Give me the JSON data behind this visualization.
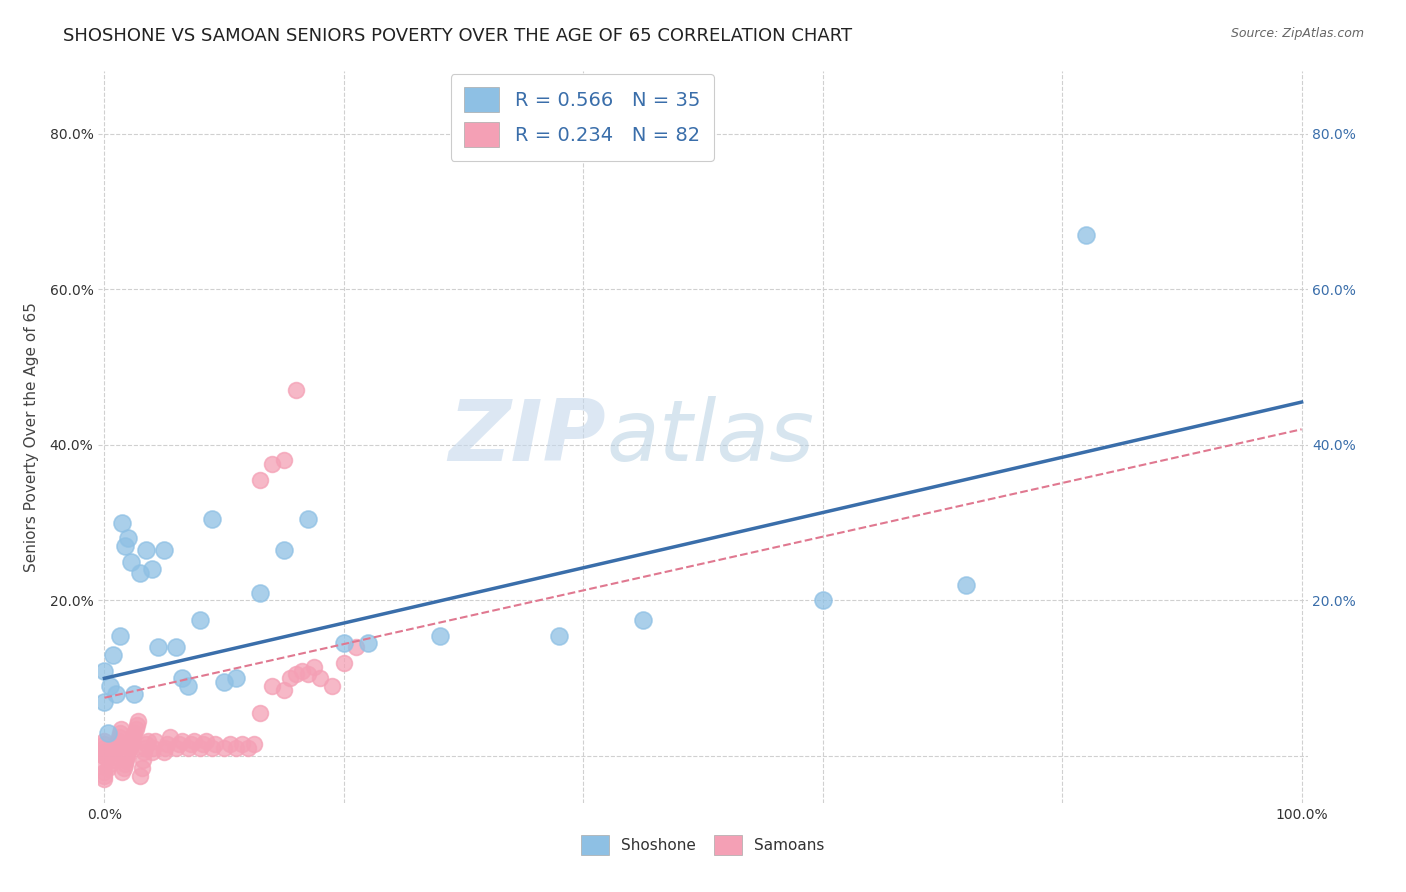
{
  "title": "SHOSHONE VS SAMOAN SENIORS POVERTY OVER THE AGE OF 65 CORRELATION CHART",
  "source": "Source: ZipAtlas.com",
  "ylabel": "Seniors Poverty Over the Age of 65",
  "xlim": [
    -0.005,
    1.005
  ],
  "ylim": [
    -0.06,
    0.88
  ],
  "xticks": [
    0.0,
    0.2,
    0.4,
    0.6,
    0.8,
    1.0
  ],
  "xticklabels": [
    "0.0%",
    "",
    "",
    "",
    "",
    "100.0%"
  ],
  "yticks": [
    0.0,
    0.2,
    0.4,
    0.6,
    0.8
  ],
  "yticklabels": [
    "",
    "20.0%",
    "40.0%",
    "60.0%",
    "80.0%"
  ],
  "right_yticklabels": [
    "20.0%",
    "40.0%",
    "60.0%",
    "80.0%"
  ],
  "shoshone_color": "#8ec0e4",
  "samoan_color": "#f4a0b5",
  "shoshone_line_color": "#3a6eaa",
  "samoan_line_color": "#e07890",
  "background_color": "#ffffff",
  "grid_color": "#d0d0d0",
  "watermark_zip": "ZIP",
  "watermark_atlas": "atlas",
  "legend_text1": "R = 0.566   N = 35",
  "legend_text2": "R = 0.234   N = 82",
  "legend_label1": "Shoshone",
  "legend_label2": "Samoans",
  "blue_line_x0": 0.0,
  "blue_line_y0": 0.1,
  "blue_line_x1": 1.0,
  "blue_line_y1": 0.455,
  "pink_line_x0": 0.0,
  "pink_line_y0": 0.075,
  "pink_line_x1": 1.0,
  "pink_line_y1": 0.42,
  "shoshone_pts_x": [
    0.0,
    0.0,
    0.003,
    0.005,
    0.007,
    0.01,
    0.013,
    0.015,
    0.017,
    0.02,
    0.022,
    0.025,
    0.03,
    0.035,
    0.04,
    0.045,
    0.05,
    0.06,
    0.065,
    0.07,
    0.08,
    0.09,
    0.1,
    0.11,
    0.13,
    0.15,
    0.17,
    0.2,
    0.22,
    0.28,
    0.38,
    0.45,
    0.6,
    0.72,
    0.82
  ],
  "shoshone_pts_y": [
    0.07,
    0.11,
    0.03,
    0.09,
    0.13,
    0.08,
    0.155,
    0.3,
    0.27,
    0.28,
    0.25,
    0.08,
    0.235,
    0.265,
    0.24,
    0.14,
    0.265,
    0.14,
    0.1,
    0.09,
    0.175,
    0.305,
    0.095,
    0.1,
    0.21,
    0.265,
    0.305,
    0.145,
    0.145,
    0.155,
    0.155,
    0.175,
    0.2,
    0.22,
    0.67
  ],
  "samoan_pts_x": [
    0.0,
    0.0,
    0.0,
    0.0,
    0.0,
    0.0,
    0.0,
    0.0,
    0.0,
    0.0,
    0.003,
    0.005,
    0.006,
    0.007,
    0.008,
    0.009,
    0.01,
    0.011,
    0.012,
    0.013,
    0.014,
    0.015,
    0.016,
    0.017,
    0.018,
    0.019,
    0.02,
    0.021,
    0.022,
    0.023,
    0.024,
    0.025,
    0.026,
    0.027,
    0.028,
    0.03,
    0.031,
    0.032,
    0.033,
    0.034,
    0.035,
    0.036,
    0.04,
    0.041,
    0.042,
    0.05,
    0.051,
    0.052,
    0.055,
    0.06,
    0.062,
    0.065,
    0.07,
    0.072,
    0.075,
    0.08,
    0.082,
    0.085,
    0.09,
    0.092,
    0.1,
    0.105,
    0.11,
    0.115,
    0.12,
    0.125,
    0.13,
    0.14,
    0.15,
    0.155,
    0.16,
    0.165,
    0.17,
    0.175,
    0.18,
    0.19,
    0.2,
    0.21,
    0.13,
    0.14,
    0.15,
    0.16
  ],
  "samoan_pts_y": [
    0.0,
    0.0,
    -0.01,
    -0.02,
    -0.025,
    -0.03,
    0.005,
    0.01,
    0.015,
    0.02,
    -0.015,
    -0.01,
    -0.005,
    0.0,
    0.005,
    0.01,
    0.015,
    0.02,
    0.025,
    0.03,
    0.035,
    -0.02,
    -0.015,
    -0.01,
    -0.005,
    0.0,
    0.005,
    0.01,
    0.015,
    0.02,
    0.025,
    0.03,
    0.035,
    0.04,
    0.045,
    -0.025,
    -0.015,
    -0.005,
    0.005,
    0.01,
    0.015,
    0.02,
    0.005,
    0.01,
    0.02,
    0.005,
    0.01,
    0.015,
    0.025,
    0.01,
    0.015,
    0.02,
    0.01,
    0.015,
    0.02,
    0.01,
    0.015,
    0.02,
    0.01,
    0.015,
    0.01,
    0.015,
    0.01,
    0.015,
    0.01,
    0.015,
    0.055,
    0.09,
    0.085,
    0.1,
    0.105,
    0.11,
    0.105,
    0.115,
    0.1,
    0.09,
    0.12,
    0.14,
    0.355,
    0.375,
    0.38,
    0.47
  ],
  "title_fontsize": 13,
  "axis_fontsize": 11,
  "tick_fontsize": 10,
  "legend_fontsize": 14
}
